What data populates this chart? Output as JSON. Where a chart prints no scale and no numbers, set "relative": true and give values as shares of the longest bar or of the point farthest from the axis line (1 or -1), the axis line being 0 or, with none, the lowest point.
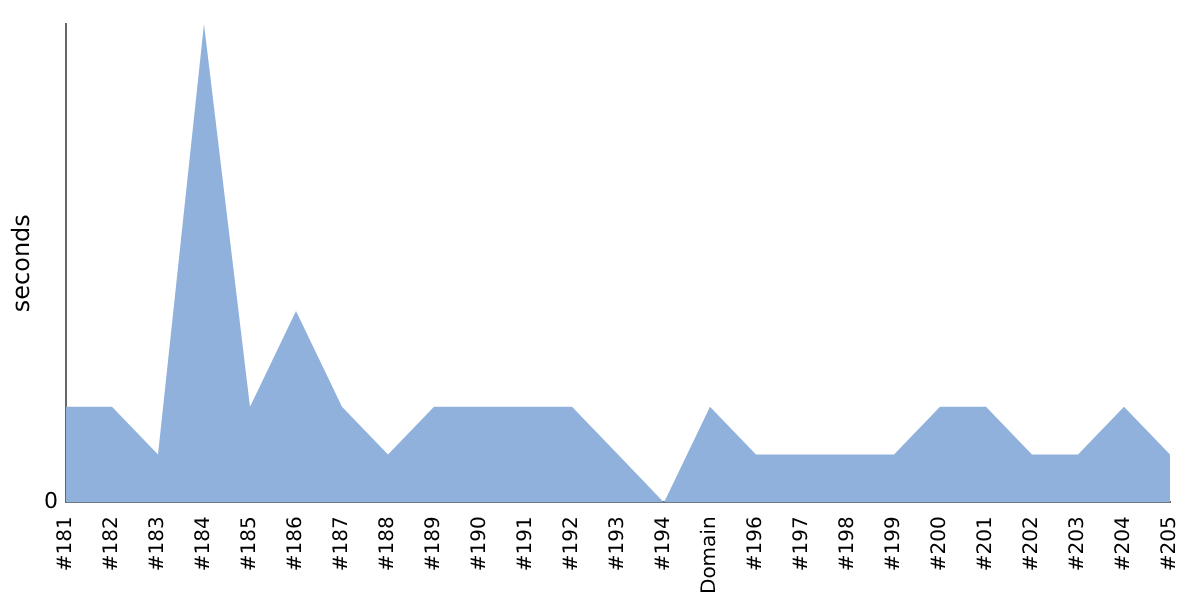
{
  "chart_data": {
    "type": "area",
    "ylabel": "seconds",
    "relative": true,
    "grid": false,
    "legend": false,
    "categories": [
      "#181",
      "#182",
      "#183",
      "#184",
      "#185",
      "#186",
      "#187",
      "#188",
      "#189",
      "#190",
      "#191",
      "#192",
      "#193",
      "#194",
      "Domain",
      "#196",
      "#197",
      "#198",
      "#199",
      "#200",
      "#201",
      "#202",
      "#203",
      "#204",
      "#205"
    ],
    "series": [
      {
        "color": "#8fb1dc",
        "values": [
          0.2,
          0.2,
          0.1,
          1,
          0.2,
          0.4,
          0.2,
          0.1,
          0.2,
          0.2,
          0.2,
          0.2,
          0.1,
          0,
          0.2,
          0.1,
          0.1,
          0.1,
          0.1,
          0.2,
          0.2,
          0.1,
          0.1,
          0.2,
          0.1
        ]
      }
    ],
    "annotations": [
      "0"
    ]
  }
}
